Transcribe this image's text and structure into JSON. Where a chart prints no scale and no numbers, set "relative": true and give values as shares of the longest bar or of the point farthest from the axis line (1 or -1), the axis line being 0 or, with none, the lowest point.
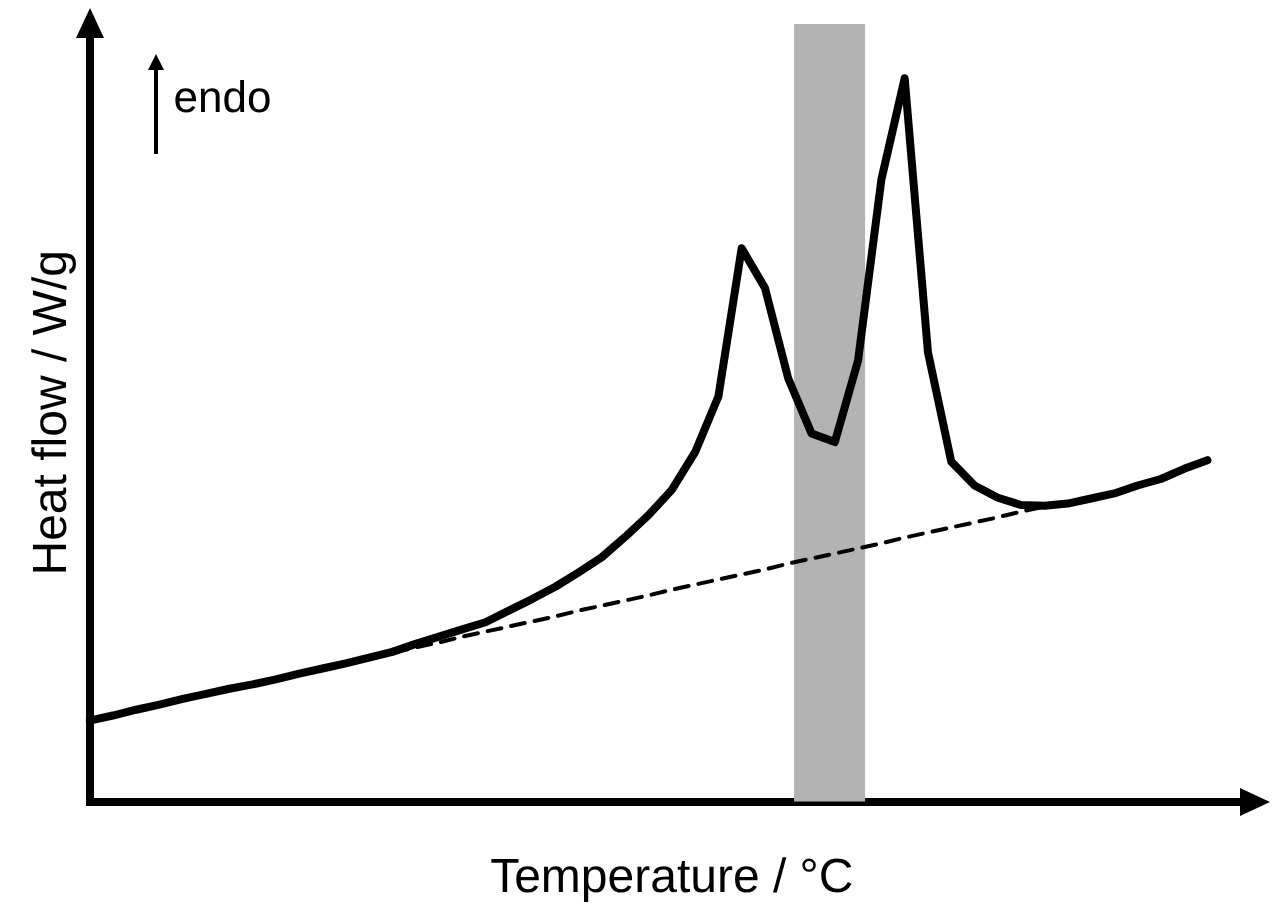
{
  "chart_data": {
    "type": "line",
    "relative": true,
    "xlabel": "Temperature / °C",
    "ylabel": "Heat flow / W/g",
    "marker": "none",
    "annotations": [
      "endo"
    ],
    "categories": [
      null,
      null,
      null,
      null,
      null,
      null,
      null,
      null,
      null,
      null,
      null,
      null,
      null,
      null,
      null,
      null,
      null,
      null,
      null,
      null,
      null,
      null,
      null,
      null,
      null,
      null,
      null,
      null,
      null,
      null,
      null,
      null,
      null,
      null,
      null,
      null,
      null,
      null,
      null,
      null,
      null,
      null,
      null,
      null,
      null,
      null,
      null,
      null,
      null,
      null,
      null
    ],
    "series": [
      {
        "color": "#000000",
        "line_style": "solid",
        "values": [
          0.112,
          0.119,
          0.127,
          0.134,
          0.142,
          0.149,
          0.156,
          0.162,
          0.169,
          0.177,
          0.184,
          0.191,
          0.199,
          0.207,
          0.218,
          0.228,
          0.238,
          0.248,
          0.264,
          0.28,
          0.297,
          0.317,
          0.338,
          0.366,
          0.396,
          0.431,
          0.483,
          0.56,
          0.765,
          0.71,
          0.585,
          0.509,
          0.497,
          0.61,
          0.86,
          1,
          0.621,
          0.47,
          0.437,
          0.42,
          0.41,
          0.409,
          0.412,
          0.419,
          0.426,
          0.437,
          0.446,
          0.46,
          0.472,
          null,
          null
        ]
      },
      {
        "type": "line",
        "color": "#000000",
        "line_style": "dashed",
        "values": [
          0.112,
          0.119,
          0.126,
          0.134,
          0.141,
          0.148,
          0.155,
          0.163,
          0.17,
          0.177,
          0.184,
          0.191,
          0.199,
          0.206,
          0.213,
          0.22,
          0.228,
          0.235,
          0.242,
          0.249,
          0.256,
          0.264,
          0.271,
          0.278,
          0.285,
          0.293,
          0.3,
          0.307,
          0.314,
          0.321,
          0.329,
          0.336,
          0.343,
          0.35,
          0.357,
          0.365,
          0.372,
          0.379,
          0.386,
          0.393,
          0.401,
          0.408,
          null,
          null,
          null,
          null,
          null,
          null,
          null,
          null,
          null
        ]
      }
    ]
  }
}
